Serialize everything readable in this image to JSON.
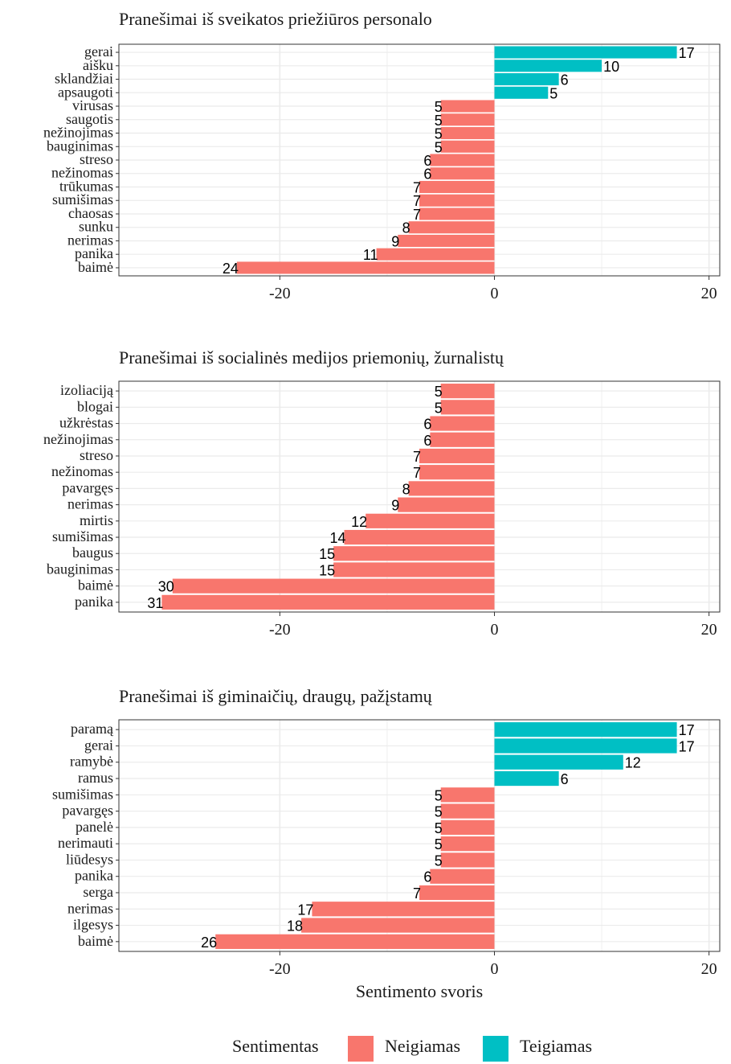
{
  "colors": {
    "Neigiamas": "#F8766D",
    "Teigiamas": "#00BFC4",
    "grid": "#ebebeb",
    "frame": "#333333"
  },
  "chart_data": [
    {
      "type": "bar",
      "orientation": "horizontal",
      "title": "Pranešimai iš sveikatos priežiūros personalo",
      "xlim": [
        -35,
        21
      ],
      "xticks": [
        -20,
        0,
        20
      ],
      "xlabel": "",
      "grid": true,
      "bars": [
        {
          "label": "gerai",
          "value": 17,
          "sentiment": "Teigiamas"
        },
        {
          "label": "aišku",
          "value": 10,
          "sentiment": "Teigiamas"
        },
        {
          "label": "sklandžiai",
          "value": 6,
          "sentiment": "Teigiamas"
        },
        {
          "label": "apsaugoti",
          "value": 5,
          "sentiment": "Teigiamas"
        },
        {
          "label": "virusas",
          "value": -5,
          "sentiment": "Neigiamas"
        },
        {
          "label": "saugotis",
          "value": -5,
          "sentiment": "Neigiamas"
        },
        {
          "label": "nežinojimas",
          "value": -5,
          "sentiment": "Neigiamas"
        },
        {
          "label": "bauginimas",
          "value": -5,
          "sentiment": "Neigiamas"
        },
        {
          "label": "streso",
          "value": -6,
          "sentiment": "Neigiamas"
        },
        {
          "label": "nežinomas",
          "value": -6,
          "sentiment": "Neigiamas"
        },
        {
          "label": "trūkumas",
          "value": -7,
          "sentiment": "Neigiamas"
        },
        {
          "label": "sumišimas",
          "value": -7,
          "sentiment": "Neigiamas"
        },
        {
          "label": "chaosas",
          "value": -7,
          "sentiment": "Neigiamas"
        },
        {
          "label": "sunku",
          "value": -8,
          "sentiment": "Neigiamas"
        },
        {
          "label": "nerimas",
          "value": -9,
          "sentiment": "Neigiamas"
        },
        {
          "label": "panika",
          "value": -11,
          "sentiment": "Neigiamas"
        },
        {
          "label": "baimė",
          "value": -24,
          "sentiment": "Neigiamas"
        }
      ]
    },
    {
      "type": "bar",
      "orientation": "horizontal",
      "title": "Pranešimai iš socialinės medijos priemonių, žurnalistų",
      "xlim": [
        -35,
        21
      ],
      "xticks": [
        -20,
        0,
        20
      ],
      "xlabel": "",
      "grid": true,
      "bars": [
        {
          "label": "izoliaciją",
          "value": -5,
          "sentiment": "Neigiamas"
        },
        {
          "label": "blogai",
          "value": -5,
          "sentiment": "Neigiamas"
        },
        {
          "label": "užkrėstas",
          "value": -6,
          "sentiment": "Neigiamas"
        },
        {
          "label": "nežinojimas",
          "value": -6,
          "sentiment": "Neigiamas"
        },
        {
          "label": "streso",
          "value": -7,
          "sentiment": "Neigiamas"
        },
        {
          "label": "nežinomas",
          "value": -7,
          "sentiment": "Neigiamas"
        },
        {
          "label": "pavargęs",
          "value": -8,
          "sentiment": "Neigiamas"
        },
        {
          "label": "nerimas",
          "value": -9,
          "sentiment": "Neigiamas"
        },
        {
          "label": "mirtis",
          "value": -12,
          "sentiment": "Neigiamas"
        },
        {
          "label": "sumišimas",
          "value": -14,
          "sentiment": "Neigiamas"
        },
        {
          "label": "baugus",
          "value": -15,
          "sentiment": "Neigiamas"
        },
        {
          "label": "bauginimas",
          "value": -15,
          "sentiment": "Neigiamas"
        },
        {
          "label": "baimė",
          "value": -30,
          "sentiment": "Neigiamas"
        },
        {
          "label": "panika",
          "value": -31,
          "sentiment": "Neigiamas"
        }
      ]
    },
    {
      "type": "bar",
      "orientation": "horizontal",
      "title": "Pranešimai iš giminaičių, draugų, pažįstamų",
      "xlim": [
        -35,
        21
      ],
      "xticks": [
        -20,
        0,
        20
      ],
      "xlabel": "Sentimento svoris",
      "grid": true,
      "bars": [
        {
          "label": "paramą",
          "value": 17,
          "sentiment": "Teigiamas"
        },
        {
          "label": "gerai",
          "value": 17,
          "sentiment": "Teigiamas"
        },
        {
          "label": "ramybė",
          "value": 12,
          "sentiment": "Teigiamas"
        },
        {
          "label": "ramus",
          "value": 6,
          "sentiment": "Teigiamas"
        },
        {
          "label": "sumišimas",
          "value": -5,
          "sentiment": "Neigiamas"
        },
        {
          "label": "pavargęs",
          "value": -5,
          "sentiment": "Neigiamas"
        },
        {
          "label": "panelė",
          "value": -5,
          "sentiment": "Neigiamas"
        },
        {
          "label": "nerimauti",
          "value": -5,
          "sentiment": "Neigiamas"
        },
        {
          "label": "liūdesys",
          "value": -5,
          "sentiment": "Neigiamas"
        },
        {
          "label": "panika",
          "value": -6,
          "sentiment": "Neigiamas"
        },
        {
          "label": "serga",
          "value": -7,
          "sentiment": "Neigiamas"
        },
        {
          "label": "nerimas",
          "value": -17,
          "sentiment": "Neigiamas"
        },
        {
          "label": "ilgesys",
          "value": -18,
          "sentiment": "Neigiamas"
        },
        {
          "label": "baimė",
          "value": -26,
          "sentiment": "Neigiamas"
        }
      ]
    }
  ],
  "legend": {
    "title": "Sentimentas",
    "position": "bottom",
    "items": [
      {
        "label": "Neigiamas",
        "color": "#F8766D"
      },
      {
        "label": "Teigiamas",
        "color": "#00BFC4"
      }
    ]
  }
}
